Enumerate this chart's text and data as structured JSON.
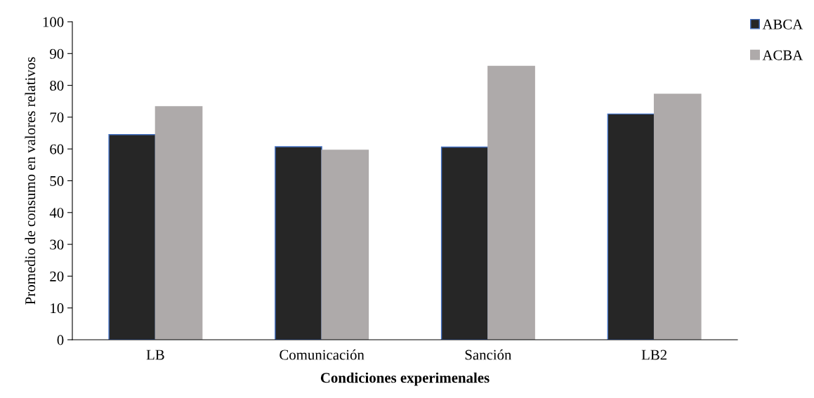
{
  "chart_data": {
    "type": "bar",
    "xlabel": "Condiciones experimenales",
    "ylabel": "Promedio de consumo en valores relativos",
    "categories": [
      "LB",
      "Comunicación",
      "Sanción",
      "LB2"
    ],
    "series": [
      {
        "name": "ABCA",
        "color": "#262626",
        "values": [
          64.5,
          60.7,
          60.6,
          71.0
        ]
      },
      {
        "name": "ACBA",
        "color": "#aeaaaa",
        "values": [
          73.3,
          59.6,
          86.0,
          77.2
        ]
      }
    ],
    "ylim": [
      0,
      100
    ],
    "yticks": [
      0,
      10,
      20,
      30,
      40,
      50,
      60,
      70,
      80,
      90,
      100
    ],
    "grid": false,
    "legend": "top right"
  }
}
